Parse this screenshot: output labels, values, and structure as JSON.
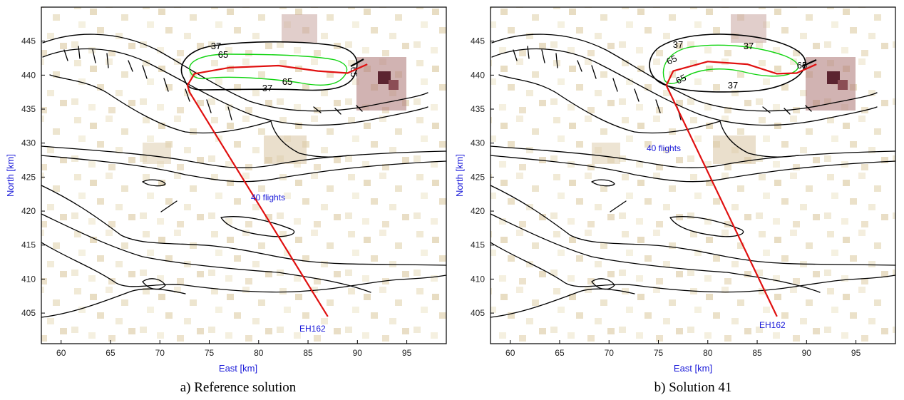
{
  "chart_data": [
    {
      "type": "map",
      "caption": "a) Reference solution",
      "xlabel": "East [km]",
      "ylabel": "North [km]",
      "xlim": [
        58,
        99
      ],
      "ylim": [
        400.5,
        450
      ],
      "xticks": [
        60,
        65,
        70,
        75,
        80,
        85,
        90,
        95
      ],
      "yticks": [
        405,
        410,
        415,
        420,
        425,
        430,
        435,
        440,
        445
      ],
      "route": {
        "name": "EH162",
        "flights_label": "40 flights",
        "points": [
          [
            87,
            404.5
          ],
          [
            73,
            437.5
          ],
          [
            72.8,
            438.5
          ],
          [
            73.5,
            440.2
          ],
          [
            77,
            441.1
          ],
          [
            82,
            441.4
          ],
          [
            86,
            440.6
          ],
          [
            89,
            440.3
          ],
          [
            91,
            441.6
          ]
        ]
      },
      "contour_labels": [
        "37",
        "65",
        "65",
        "65",
        "37"
      ],
      "colors": {
        "route": "#e01010",
        "contour_65": "#11d411",
        "contour_37": "#000000",
        "text": "#1a1ad9"
      }
    },
    {
      "type": "map",
      "caption": "b) Solution 41",
      "xlabel": "East [km]",
      "ylabel": "North [km]",
      "xlim": [
        58,
        99
      ],
      "ylim": [
        400.5,
        450
      ],
      "xticks": [
        60,
        65,
        70,
        75,
        80,
        85,
        90,
        95
      ],
      "yticks": [
        405,
        410,
        415,
        420,
        425,
        430,
        435,
        440,
        445
      ],
      "route": {
        "name": "EH162",
        "flights_label": "40 flights",
        "points": [
          [
            87,
            404.5
          ],
          [
            75.8,
            438.5
          ],
          [
            76.5,
            440.6
          ],
          [
            80,
            442
          ],
          [
            84,
            441.6
          ],
          [
            87,
            440.2
          ],
          [
            89,
            440.3
          ],
          [
            91,
            441.6
          ]
        ]
      },
      "contour_labels": [
        "37",
        "37",
        "65",
        "65",
        "65",
        "37",
        "65"
      ],
      "colors": {
        "route": "#e01010",
        "contour_65": "#11d411",
        "contour_37": "#000000",
        "text": "#1a1ad9"
      }
    }
  ]
}
